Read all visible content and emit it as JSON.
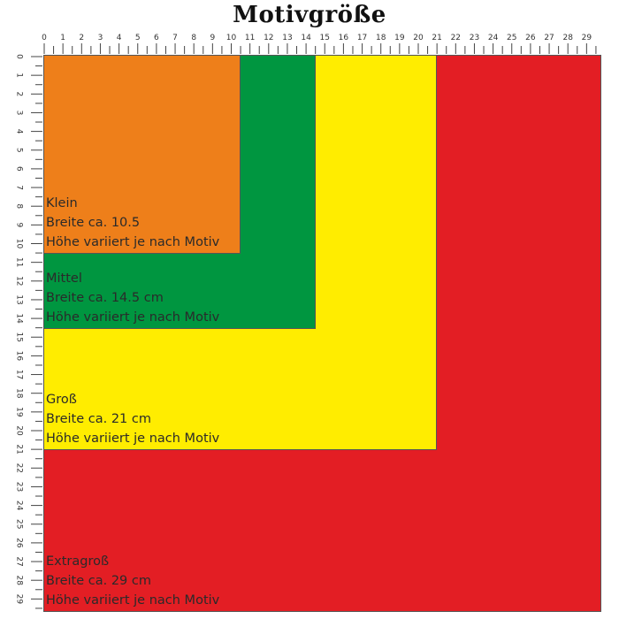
{
  "title": "Motivgröße",
  "ruler": {
    "min": 0,
    "max": 29,
    "unit": "cm"
  },
  "sizes": [
    {
      "name": "Extragroß",
      "width_text": "Breite ca. 29 cm",
      "height_text": "Höhe variiert je nach Motiv",
      "size_cm": 29,
      "color": "#E31E24"
    },
    {
      "name": "Groß",
      "width_text": "Breite ca. 21 cm",
      "height_text": "Höhe variiert je nach Motiv",
      "size_cm": 21,
      "color": "#FFED00"
    },
    {
      "name": "Mittel",
      "width_text": "Breite ca. 14.5 cm",
      "height_text": "Höhe variiert je nach Motiv",
      "size_cm": 14.5,
      "color": "#009640"
    },
    {
      "name": "Klein",
      "width_text": "Breite ca. 10.5",
      "height_text": "Höhe variiert je nach Motiv",
      "size_cm": 10.5,
      "color": "#EE7F1A"
    }
  ]
}
